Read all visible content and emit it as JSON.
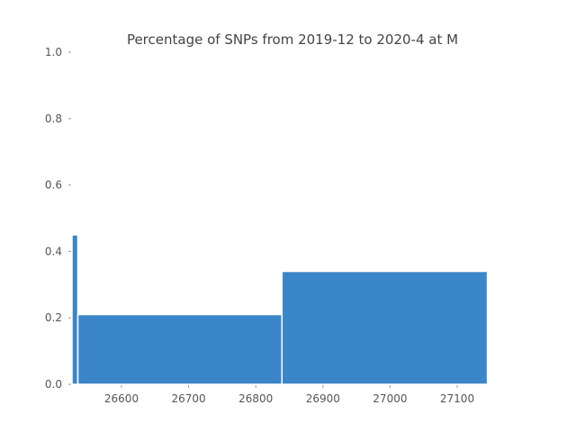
{
  "chart_data": {
    "type": "bar",
    "title": "Percentage of SNPs from 2019-12 to 2020-4 at M",
    "xlabel": "",
    "ylabel": "",
    "xlim": [
      26523,
      26778
    ],
    "ylim": [
      0,
      1.0
    ],
    "xticks": [
      26600,
      26700,
      26800,
      26900,
      27000,
      27100
    ],
    "xtick_labels": [
      "26600",
      "26700",
      "26800",
      "26900",
      "27000",
      "27100"
    ],
    "yticks": [
      0.0,
      0.2,
      0.4,
      0.6,
      0.8,
      1.0
    ],
    "ytick_labels": [
      "0.0",
      "0.2",
      "0.4",
      "0.6",
      "0.8",
      "1.0"
    ],
    "bars": [
      {
        "x_start": 26523,
        "x_end": 26535,
        "value": 0.45
      },
      {
        "x_start": 26535,
        "x_end": 26839,
        "value": 0.21
      },
      {
        "x_start": 26839,
        "x_end": 27145,
        "value": 0.34
      }
    ],
    "grid": false,
    "colors": {
      "bar": "#3A86C8",
      "bar_edge": "#ffffff"
    }
  }
}
